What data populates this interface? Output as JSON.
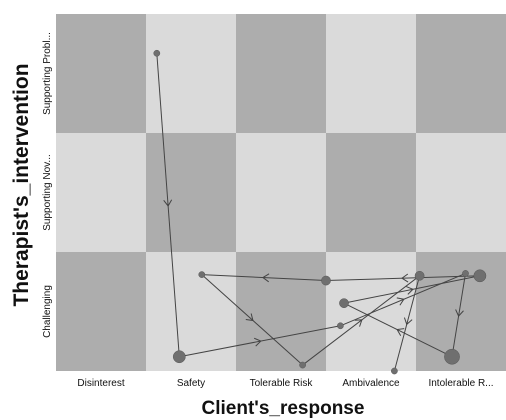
{
  "chart_data": {
    "type": "scatter",
    "xlabel": "Client's_response",
    "ylabel": "Therapist's_intervention",
    "categories_x": [
      "Disinterest",
      "Safety",
      "Tolerable Risk",
      "Ambivalence",
      "Intolerable R..."
    ],
    "categories_y": [
      "Challenging",
      "Supporting Nov...",
      "Supporting Probl..."
    ],
    "grid": "checkerboard",
    "cell_colors": {
      "dark": "#adadad",
      "light": "#dadada"
    },
    "line_color": "#444444",
    "point_color": "#6f6f6f",
    "path": [
      {
        "x": 1.12,
        "y": 2.67,
        "size": 1
      },
      {
        "x": 1.37,
        "y": 0.12,
        "size": 3
      },
      {
        "x": 3.16,
        "y": 0.38,
        "size": 1
      },
      {
        "x": 4.55,
        "y": 0.82,
        "size": 1
      },
      {
        "x": 4.4,
        "y": 0.12,
        "size": 4
      },
      {
        "x": 3.2,
        "y": 0.57,
        "size": 2
      },
      {
        "x": 4.71,
        "y": 0.8,
        "size": 3
      },
      {
        "x": 3.0,
        "y": 0.76,
        "size": 2
      },
      {
        "x": 1.62,
        "y": 0.81,
        "size": 1
      },
      {
        "x": 2.74,
        "y": 0.05,
        "size": 1
      },
      {
        "x": 4.04,
        "y": 0.8,
        "size": 2
      },
      {
        "x": 3.76,
        "y": 0.0,
        "size": 1
      }
    ]
  }
}
